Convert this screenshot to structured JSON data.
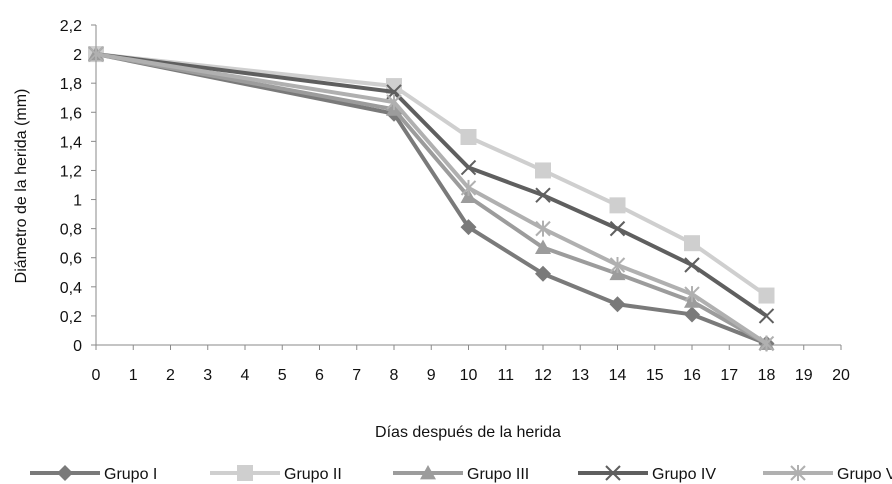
{
  "chart_data": {
    "type": "line",
    "title": "",
    "xlabel": "Días después de la herida",
    "ylabel": "Diámetro de la herida (mm)",
    "xlim": [
      0,
      20
    ],
    "ylim": [
      0,
      2.2
    ],
    "x_ticks": [
      "0",
      "1",
      "2",
      "3",
      "4",
      "5",
      "6",
      "7",
      "8",
      "9",
      "10",
      "11",
      "12",
      "13",
      "14",
      "15",
      "16",
      "17",
      "18",
      "19",
      "20"
    ],
    "y_ticks": [
      "0",
      "0,2",
      "0,4",
      "0,6",
      "0,8",
      "1",
      "1,2",
      "1,4",
      "1,6",
      "1,8",
      "2",
      "2,2"
    ],
    "x": [
      0,
      8,
      10,
      12,
      14,
      16,
      18
    ],
    "grid": false,
    "legend_position": "bottom",
    "series": [
      {
        "name": "Grupo I",
        "marker": "diamond",
        "color": "#7a7a7a",
        "values": [
          2.0,
          1.59,
          0.81,
          0.49,
          0.28,
          0.21,
          0.01
        ]
      },
      {
        "name": "Grupo II",
        "marker": "square",
        "color": "#cfcfcf",
        "values": [
          2.0,
          1.78,
          1.43,
          1.2,
          0.96,
          0.7,
          0.34
        ]
      },
      {
        "name": "Grupo III",
        "marker": "triangle",
        "color": "#9c9c9c",
        "values": [
          2.0,
          1.62,
          1.02,
          0.67,
          0.49,
          0.3,
          0.01
        ]
      },
      {
        "name": "Grupo IV",
        "marker": "x",
        "color": "#5f5f5f",
        "values": [
          2.0,
          1.74,
          1.22,
          1.03,
          0.8,
          0.55,
          0.2
        ]
      },
      {
        "name": "Grupo V",
        "marker": "star",
        "color": "#b0b0b0",
        "values": [
          2.0,
          1.67,
          1.08,
          0.8,
          0.55,
          0.35,
          0.01
        ]
      }
    ]
  }
}
